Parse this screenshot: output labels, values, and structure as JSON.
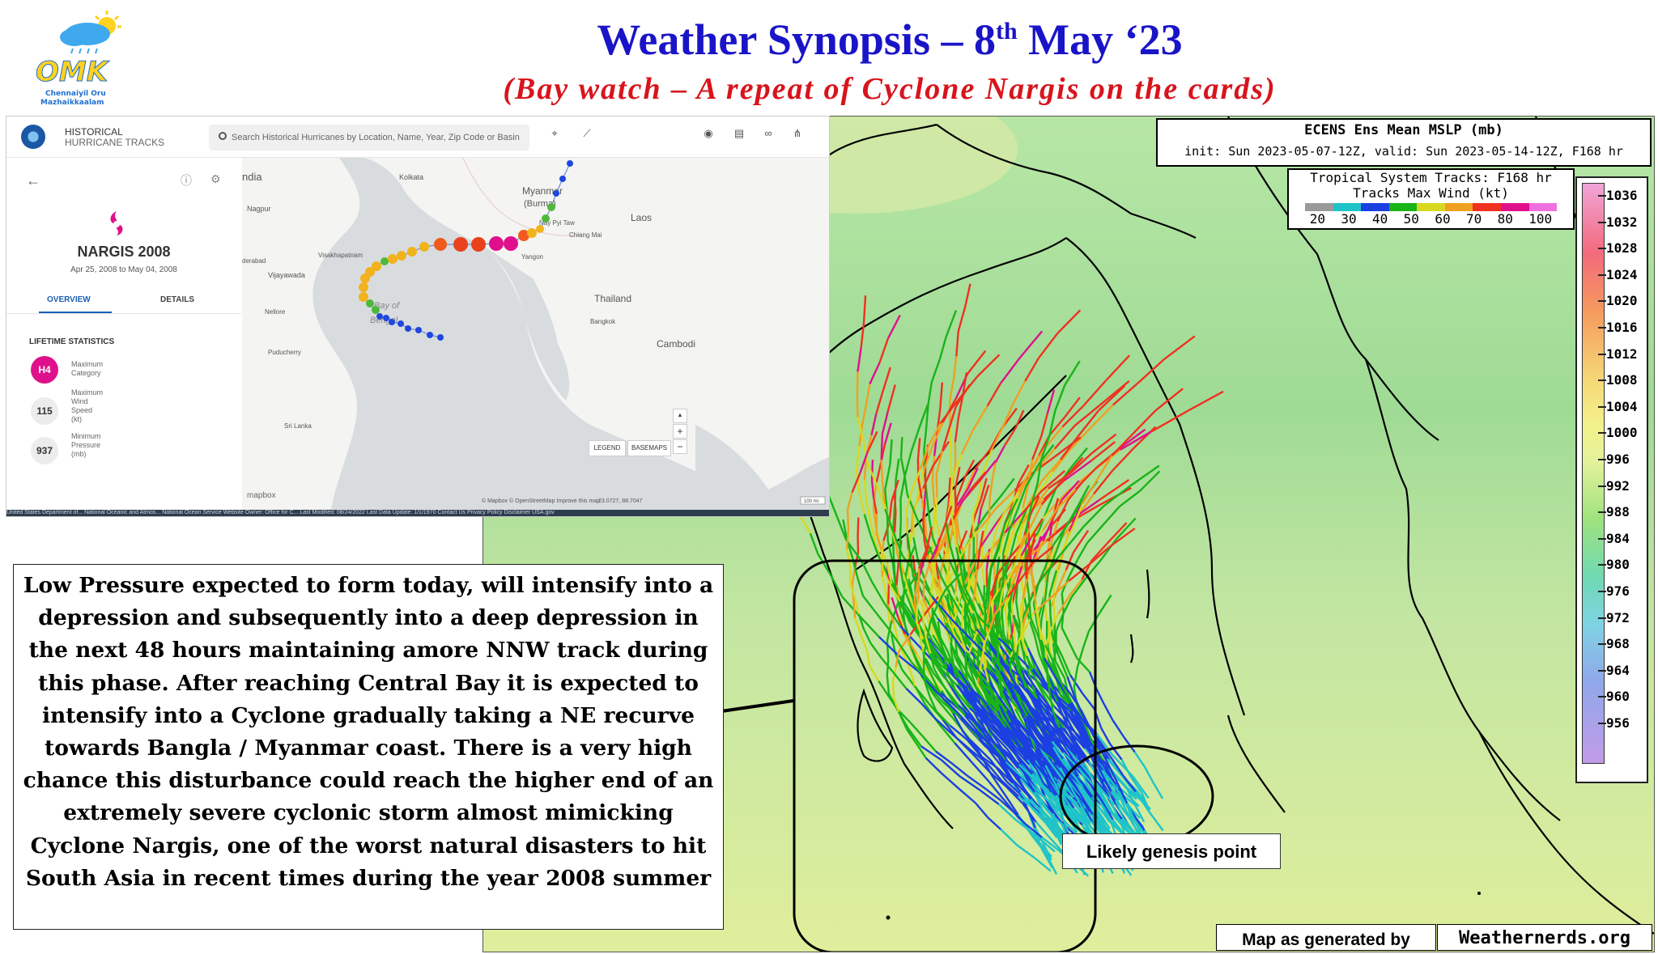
{
  "header": {
    "title_main": "Weather Synopsis – 8",
    "title_sup": "th",
    "title_tail": " May ‘23",
    "subtitle": "(Bay watch – A repeat of Cyclone Nargis on the cards)"
  },
  "logo": {
    "wordmark": "OMK",
    "caption_line1": "Chennaiyil Oru",
    "caption_line2": "Mazhaikkaalam",
    "icon": "cloud-sun-rain-icon"
  },
  "hurricane_tool": {
    "app_title_line1": "HISTORICAL",
    "app_title_line2": "HURRICANE TRACKS",
    "search_placeholder": "Search Historical Hurricanes by Location, Name, Year, Zip Code or Basin",
    "storm_name": "NARGIS 2008",
    "storm_dates": "Apr 25, 2008 to May 04, 2008",
    "tabs": [
      "OVERVIEW",
      "DETAILS"
    ],
    "stats_title": "LIFETIME STATISTICS",
    "stats": [
      {
        "value": "H4",
        "label_lines": [
          "Maximum",
          "Category"
        ],
        "color": "#e0108c"
      },
      {
        "value": "115",
        "label_lines": [
          "Maximum",
          "Wind",
          "Speed",
          "(kt)"
        ],
        "color": "#ececec"
      },
      {
        "value": "937",
        "label_lines": [
          "Minimum",
          "Pressure",
          "(mb)"
        ],
        "color": "#ececec"
      }
    ],
    "map_labels": {
      "myanmar": "Myanmar",
      "burma": "(Burma)",
      "laos": "Laos",
      "thailand": "Thailand",
      "cambodia": "Cambodi",
      "bay_of": "Bay of",
      "bengal": "Bengal",
      "india": "ndia",
      "nagpur": "Nagpur",
      "kolkata": "Kolkata",
      "yangon": "Yangon",
      "bangkok": "Bangkok",
      "hyderabad": "derabad",
      "vijayawada": "Vijayawada",
      "visakhapatnam": "Visakhapatnam",
      "nellore": "Nellore",
      "puducherry": "Puducherry",
      "nay_pyi_taw": "Nay Pyi Taw",
      "chiang_mai": "Chiang Mai",
      "sri_lanka": "Sri Lanka",
      "attribution": "© Mapbox © OpenStreetMap Improve this map",
      "coords": "23.0727, 88.7047",
      "mapbox": "mapbox",
      "scale": "100 mi"
    },
    "map_buttons": {
      "legend": "LEGEND",
      "basemaps": "BASEMAPS",
      "zoom_in": "+",
      "zoom_out": "−",
      "compass": "▲"
    },
    "footer": "United States Department of...    National Oceanic and Atmos...    National Ocean Service    Website Owner: Office for C...                                                     Last Modified: 08/24/2022    Last Data Update: 1/1/1970    Contact Us    Privacy Policy    Disclaimer    USA.gov"
  },
  "ecens": {
    "title": "ECENS Ens Mean MSLP (mb)",
    "init_line": "init: Sun 2023-05-07-12Z, valid: Sun 2023-05-14-12Z, F168 hr",
    "tracks_title": "Tropical System Tracks: F168 hr",
    "tracks_sub": "Tracks Max Wind (kt)",
    "wind_ticks": [
      "20",
      "30",
      "40",
      "50",
      "60",
      "70",
      "80",
      "100"
    ],
    "wind_colors": [
      "#9a9a9a",
      "#1ec4c8",
      "#1b3fe0",
      "#18b418",
      "#d8d820",
      "#f0a020",
      "#f03020",
      "#e0108c",
      "#f070e0"
    ],
    "pressure_ticks": [
      "1036",
      "1032",
      "1028",
      "1024",
      "1020",
      "1016",
      "1012",
      "1008",
      "1004",
      "1000",
      "996",
      "992",
      "988",
      "984",
      "980",
      "976",
      "972",
      "968",
      "964",
      "960",
      "956"
    ]
  },
  "genesis_label": "Likely genesis point",
  "credit": {
    "text": "Map  as generated by",
    "site": "Weathernerds.org"
  },
  "synopsis": "Low Pressure expected to form today, will intensify into a depression and subsequently into a deep depression in the next 48 hours maintaining amore NNW track during this phase. After reaching Central Bay it is expected to intensify into a Cyclone gradually taking a NE recurve towards Bangla / Myanmar coast. There is a very high chance this disturbance could reach the higher end of an extremely severe cyclonic storm almost mimicking Cyclone Nargis, one of the worst natural disasters to hit South Asia in recent times during the year 2008 summer"
}
